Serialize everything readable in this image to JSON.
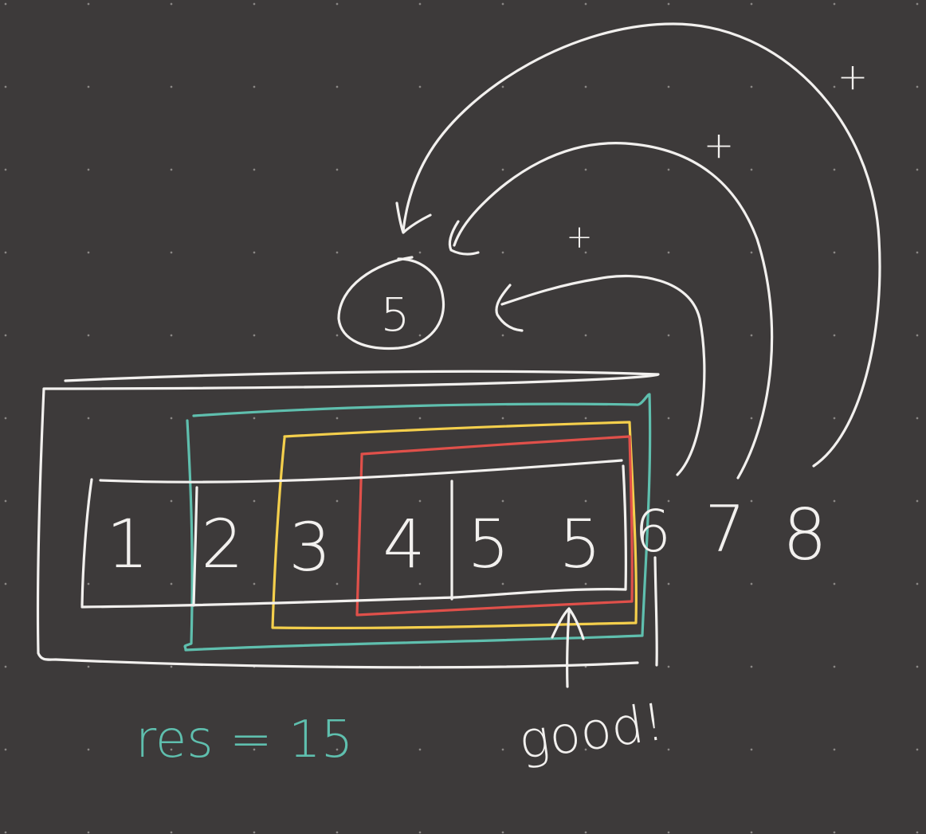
{
  "colors": {
    "background": "#3d3a3a",
    "grid_dot": "#8a8785",
    "chalk_white": "#f2f0ee",
    "teal": "#5fbfae",
    "yellow": "#f4cf4c",
    "red": "#e0504a"
  },
  "array": {
    "cells": [
      "1",
      "2",
      "3",
      "4",
      "5",
      "5"
    ],
    "outside": [
      "6",
      "7",
      "8"
    ]
  },
  "target": "5",
  "plus_signs": [
    "+",
    "+",
    "+"
  ],
  "note": "good!",
  "result": "res = 15"
}
